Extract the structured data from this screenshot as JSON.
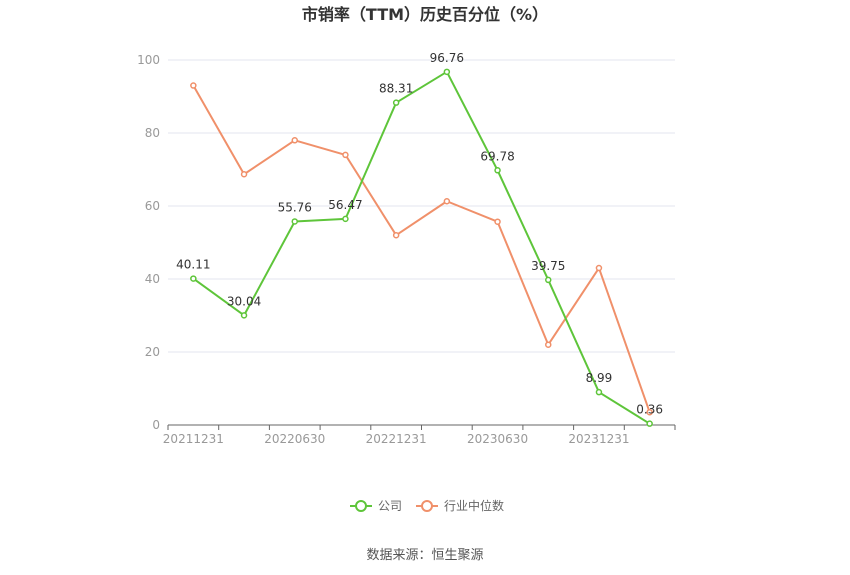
{
  "chart_data": {
    "type": "line",
    "title": "市销率（TTM）历史百分位（%）",
    "xlabel": "",
    "ylabel": "",
    "ylim": [
      0,
      100
    ],
    "yticks": [
      0,
      20,
      40,
      60,
      80,
      100
    ],
    "x": [
      "20211231",
      "20220331",
      "20220630",
      "20220930",
      "20221231",
      "20230331",
      "20230630",
      "20230930",
      "20231231",
      "20240331"
    ],
    "x_tick_labels": [
      "20211231",
      "20220630",
      "20221231",
      "20230630",
      "20231231"
    ],
    "grid": true,
    "legend_position": "bottom",
    "series": [
      {
        "name": "公司",
        "color": "#5ec53a",
        "values": [
          40.11,
          30.04,
          55.76,
          56.47,
          88.31,
          96.76,
          69.78,
          39.75,
          8.99,
          0.36
        ],
        "labels": [
          "40.11",
          "30.04",
          "55.76",
          "56.47",
          "88.31",
          "96.76",
          "69.78",
          "39.75",
          "8.99",
          "0.36"
        ]
      },
      {
        "name": "行业中位数",
        "color": "#f0906a",
        "values": [
          93,
          68.7,
          78,
          74,
          52,
          61.3,
          55.7,
          22,
          43,
          3.5
        ]
      }
    ]
  },
  "source": "数据来源：恒生聚源"
}
